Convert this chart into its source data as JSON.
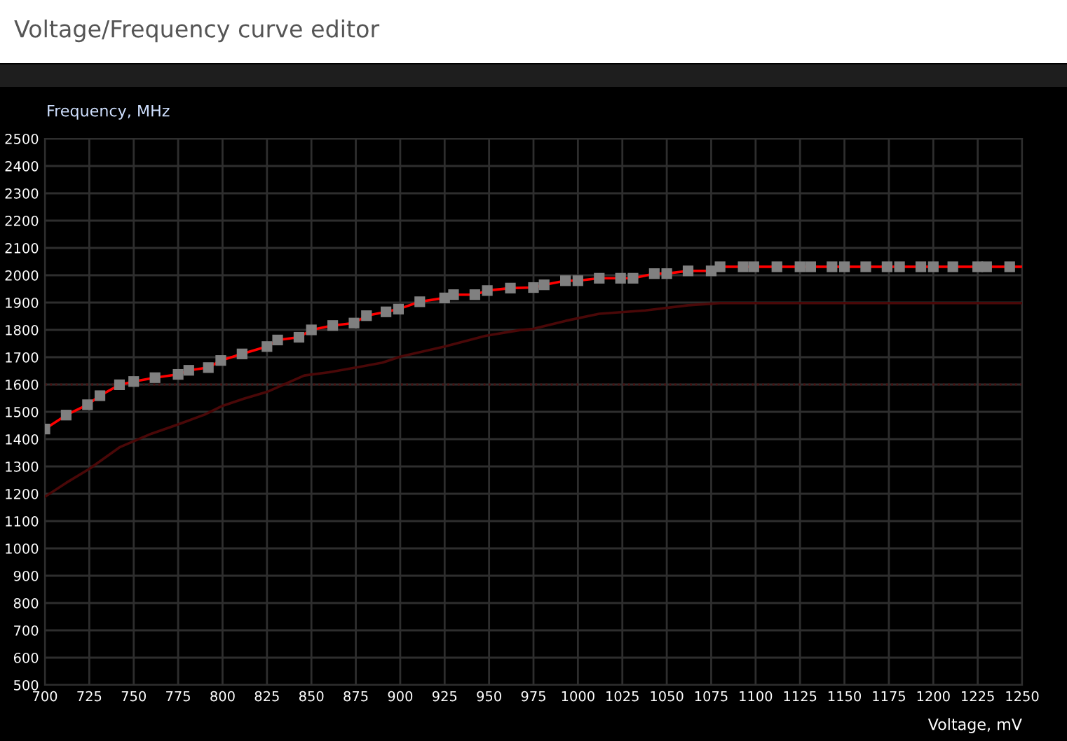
{
  "chart_data": {
    "type": "line",
    "title": "Voltage/Frequency curve editor",
    "xlabel": "Voltage, mV",
    "ylabel": "Frequency, MHz",
    "xlim": [
      700,
      1250
    ],
    "xticks": [
      700,
      725,
      750,
      775,
      800,
      825,
      850,
      875,
      900,
      925,
      950,
      975,
      1000,
      1025,
      1050,
      1075,
      1100,
      1125,
      1150,
      1175,
      1200,
      1225,
      1250
    ],
    "ylim": [
      500,
      2500
    ],
    "yticks": [
      500,
      600,
      700,
      800,
      900,
      1000,
      1100,
      1200,
      1300,
      1400,
      1500,
      1600,
      1700,
      1800,
      1900,
      2000,
      2100,
      2200,
      2300,
      2400,
      2500
    ],
    "grid": true,
    "legend": false,
    "ref_lines": [
      {
        "axis": "y",
        "value": 1600,
        "color": "#4a1010",
        "line_style": "dotted"
      }
    ],
    "series": [
      {
        "color": "#4a0808",
        "marker": "none",
        "x": [
          700,
          712,
          725,
          742,
          760,
          775,
          790,
          800,
          812,
          825,
          846,
          860,
          875,
          890,
          900,
          925,
          948,
          967,
          975,
          993,
          1012,
          1038,
          1062,
          1080,
          1250
        ],
        "values": [
          1189,
          1240,
          1291,
          1370,
          1420,
          1454,
          1490,
          1522,
          1548,
          1573,
          1633,
          1645,
          1662,
          1680,
          1702,
          1739,
          1778,
          1799,
          1804,
          1833,
          1859,
          1871,
          1890,
          1898,
          1898
        ]
      },
      {
        "color": "#ff0000",
        "marker": "none",
        "x": [
          700,
          712,
          724,
          731,
          742,
          750,
          762,
          775,
          781,
          792,
          799,
          811,
          825,
          831,
          843,
          850,
          862,
          874,
          881,
          892,
          899,
          911,
          925,
          930,
          942,
          949,
          962,
          975,
          981,
          993,
          1000,
          1012,
          1024,
          1031,
          1043,
          1050,
          1062,
          1075,
          1080,
          1093,
          1099,
          1112,
          1125,
          1131,
          1143,
          1150,
          1162,
          1174,
          1181,
          1193,
          1200,
          1211,
          1225,
          1230,
          1243,
          1250
        ],
        "values": [
          1437,
          1488,
          1526,
          1559,
          1599,
          1611,
          1625,
          1637,
          1652,
          1662,
          1688,
          1712,
          1739,
          1763,
          1773,
          1800,
          1816,
          1825,
          1852,
          1866,
          1876,
          1903,
          1917,
          1929,
          1929,
          1944,
          1953,
          1955,
          1965,
          1980,
          1980,
          1989,
          1989,
          1989,
          2006,
          2006,
          2016,
          2016,
          2031,
          2031,
          2031,
          2031,
          2031,
          2031,
          2031,
          2031,
          2031,
          2031,
          2031,
          2031,
          2031,
          2031,
          2031,
          2031,
          2031,
          2031
        ]
      },
      {
        "type": "scatter",
        "color": "#808080",
        "marker": "square",
        "x": [
          700,
          712,
          724,
          731,
          742,
          750,
          762,
          775,
          781,
          792,
          799,
          811,
          825,
          831,
          843,
          850,
          862,
          874,
          881,
          892,
          899,
          911,
          925,
          930,
          942,
          949,
          962,
          975,
          981,
          993,
          1000,
          1012,
          1024,
          1031,
          1043,
          1050,
          1062,
          1075,
          1080,
          1093,
          1099,
          1112,
          1125,
          1131,
          1143,
          1150,
          1162,
          1174,
          1181,
          1193,
          1200,
          1211,
          1225,
          1230,
          1243
        ],
        "values": [
          1437,
          1488,
          1526,
          1559,
          1599,
          1611,
          1625,
          1637,
          1652,
          1662,
          1688,
          1712,
          1739,
          1763,
          1773,
          1800,
          1816,
          1825,
          1852,
          1866,
          1876,
          1903,
          1917,
          1929,
          1929,
          1944,
          1953,
          1955,
          1965,
          1980,
          1980,
          1989,
          1989,
          1989,
          2006,
          2006,
          2016,
          2016,
          2031,
          2031,
          2031,
          2031,
          2031,
          2031,
          2031,
          2031,
          2031,
          2031,
          2031,
          2031,
          2031,
          2031,
          2031,
          2031,
          2031
        ]
      }
    ]
  }
}
